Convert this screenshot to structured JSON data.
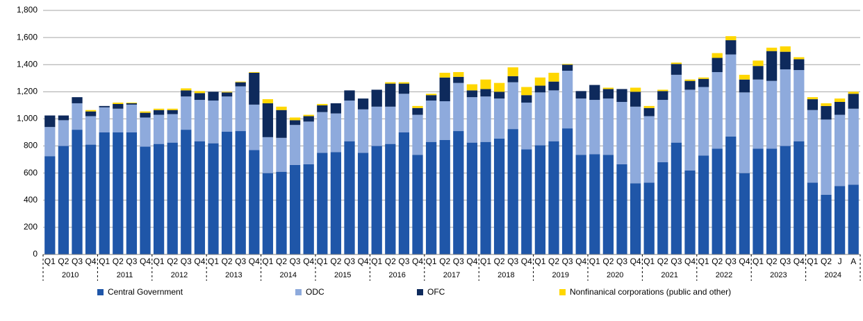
{
  "chart_data": {
    "type": "stacked_bar",
    "categories": [
      "Q1",
      "Q2",
      "Q3",
      "Q4",
      "Q1",
      "Q2",
      "Q3",
      "Q4",
      "Q1",
      "Q2",
      "Q3",
      "Q4",
      "Q1",
      "Q2",
      "Q3",
      "Q4",
      "Q1",
      "Q2",
      "Q3",
      "Q4",
      "Q1",
      "Q2",
      "Q3",
      "Q4",
      "Q1",
      "Q2",
      "Q3",
      "Q4",
      "Q1",
      "Q2",
      "Q3",
      "Q4",
      "Q1",
      "Q2",
      "Q3",
      "Q4",
      "Q1",
      "Q2",
      "Q3",
      "Q4",
      "Q1",
      "Q2",
      "Q3",
      "Q4",
      "Q1",
      "Q2",
      "Q3",
      "Q4",
      "Q1",
      "Q2",
      "Q3",
      "Q4",
      "Q1",
      "Q2",
      "Q3",
      "Q4",
      "Q1",
      "Q2",
      "J",
      "A"
    ],
    "x_groups": [
      "2010",
      "2011",
      "2012",
      "2013",
      "2014",
      "2015",
      "2016",
      "2017",
      "2018",
      "2019",
      "2020",
      "2021",
      "2022",
      "2023",
      "2024"
    ],
    "series": [
      {
        "name": "Central Government",
        "color": "#1f56a8",
        "values": [
          725,
          800,
          920,
          810,
          900,
          900,
          900,
          795,
          815,
          825,
          920,
          835,
          820,
          905,
          910,
          770,
          600,
          610,
          660,
          665,
          750,
          755,
          835,
          750,
          800,
          815,
          900,
          735,
          830,
          845,
          910,
          825,
          830,
          855,
          925,
          775,
          805,
          835,
          930,
          735,
          740,
          735,
          665,
          525,
          530,
          680,
          825,
          620,
          730,
          780,
          870,
          600,
          780,
          780,
          800,
          835,
          530,
          440,
          505,
          515
        ]
      },
      {
        "name": "ODC",
        "color": "#8eaadc",
        "values": [
          215,
          190,
          195,
          210,
          185,
          175,
          205,
          215,
          215,
          210,
          245,
          305,
          315,
          260,
          330,
          335,
          265,
          250,
          295,
          315,
          300,
          285,
          300,
          320,
          290,
          275,
          285,
          295,
          305,
          285,
          355,
          335,
          335,
          295,
          345,
          345,
          390,
          375,
          425,
          415,
          400,
          415,
          460,
          565,
          490,
          460,
          500,
          595,
          505,
          565,
          605,
          595,
          510,
          500,
          565,
          525,
          535,
          555,
          525,
          560
        ]
      },
      {
        "name": "OFC",
        "color": "#0e2a5c",
        "values": [
          85,
          35,
          45,
          35,
          10,
          35,
          10,
          35,
          35,
          30,
          45,
          50,
          65,
          30,
          30,
          235,
          250,
          205,
          35,
          40,
          50,
          75,
          75,
          80,
          125,
          170,
          75,
          50,
          40,
          175,
          45,
          50,
          55,
          50,
          45,
          55,
          50,
          65,
          45,
          55,
          110,
          70,
          95,
          110,
          60,
          65,
          80,
          65,
          60,
          105,
          105,
          95,
          100,
          220,
          130,
          80,
          80,
          100,
          95,
          110
        ]
      },
      {
        "name": "Nonfinanical corporations (public and other)",
        "color": "#ffd700",
        "values": [
          0,
          0,
          0,
          10,
          0,
          10,
          5,
          10,
          10,
          10,
          15,
          15,
          0,
          5,
          5,
          5,
          30,
          25,
          20,
          10,
          10,
          0,
          0,
          0,
          0,
          10,
          10,
          15,
          10,
          35,
          35,
          45,
          70,
          65,
          65,
          60,
          60,
          65,
          5,
          0,
          0,
          10,
          0,
          30,
          15,
          10,
          10,
          10,
          10,
          35,
          30,
          35,
          40,
          25,
          40,
          15,
          15,
          20,
          25,
          15
        ]
      }
    ],
    "ylim": [
      0,
      1800
    ],
    "yticks": [
      0,
      200,
      400,
      600,
      800,
      {
        "value": 1000,
        "label": "1,000"
      },
      {
        "value": 1200,
        "label": "1,200"
      },
      {
        "value": 1400,
        "label": "1,400"
      },
      {
        "value": 1600,
        "label": "1,600"
      },
      {
        "value": 1800,
        "label": "1,800"
      }
    ],
    "grid": true,
    "legend": "bottom"
  }
}
